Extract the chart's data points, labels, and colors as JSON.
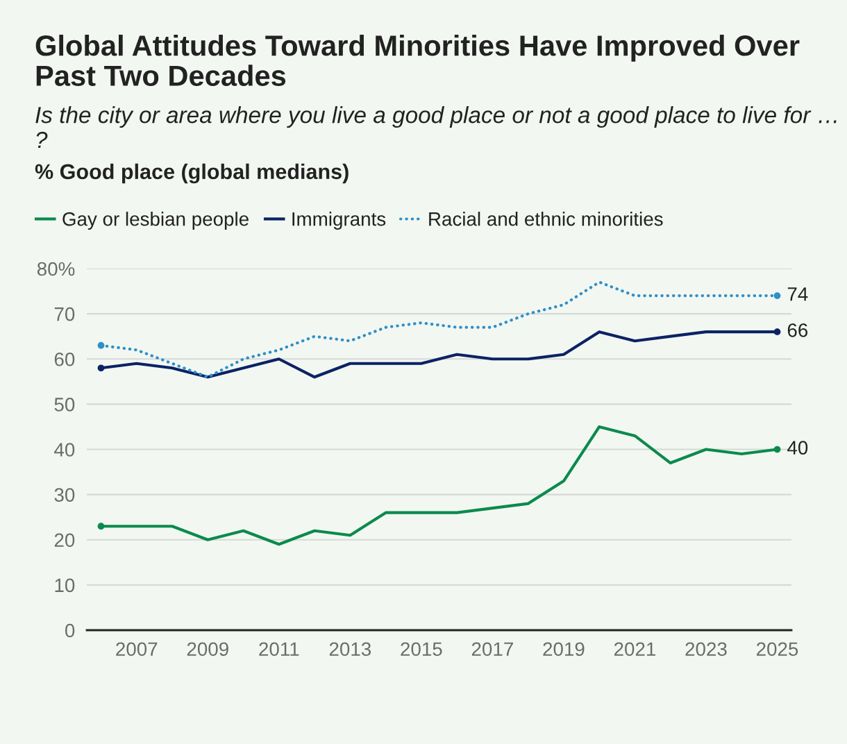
{
  "chart_data": {
    "type": "line",
    "title": "Global Attitudes Toward Minorities Have Improved Over Past Two Decades",
    "subtitle": "Is the city or area where you live a good place or not a good place to live for … ?",
    "ylabel": "% Good place (global medians)",
    "x": [
      2006,
      2007,
      2008,
      2009,
      2010,
      2011,
      2012,
      2013,
      2014,
      2015,
      2016,
      2017,
      2018,
      2019,
      2020,
      2021,
      2022,
      2023,
      2024,
      2025
    ],
    "xlim": [
      2005.6,
      2025.4
    ],
    "xticks": [
      2007,
      2009,
      2011,
      2013,
      2015,
      2017,
      2019,
      2021,
      2023,
      2025
    ],
    "ylim": [
      0,
      80
    ],
    "yticks": [
      0,
      10,
      20,
      30,
      40,
      50,
      60,
      70,
      {
        "value": 80,
        "label": "80%"
      }
    ],
    "grid": "y",
    "legend": "top left",
    "series": [
      {
        "name": "Gay or lesbian people",
        "color": "#0b8a4e",
        "line_style": "solid",
        "values": [
          23,
          23,
          23,
          20,
          22,
          19,
          22,
          21,
          26,
          26,
          26,
          27,
          28,
          33,
          45,
          43,
          37,
          40,
          39,
          40
        ],
        "value_labels": [
          null,
          null,
          null,
          null,
          null,
          null,
          null,
          null,
          null,
          null,
          null,
          null,
          null,
          null,
          null,
          null,
          null,
          null,
          null,
          "40"
        ]
      },
      {
        "name": "Immigrants",
        "color": "#0b2265",
        "line_style": "solid",
        "values": [
          58,
          59,
          58,
          56,
          58,
          60,
          56,
          59,
          59,
          59,
          61,
          60,
          60,
          61,
          66,
          64,
          65,
          66,
          66,
          66
        ],
        "value_labels": [
          null,
          null,
          null,
          null,
          null,
          null,
          null,
          null,
          null,
          null,
          null,
          null,
          null,
          null,
          null,
          null,
          null,
          null,
          null,
          "66"
        ]
      },
      {
        "name": "Racial and ethnic minorities",
        "color": "#2e8fc9",
        "line_style": "dotted",
        "values": [
          63,
          62,
          59,
          56,
          60,
          62,
          65,
          64,
          67,
          68,
          67,
          67,
          70,
          72,
          77,
          74,
          74,
          74,
          74,
          74
        ],
        "value_labels": [
          null,
          null,
          null,
          null,
          null,
          null,
          null,
          null,
          null,
          null,
          null,
          null,
          null,
          null,
          null,
          null,
          null,
          null,
          null,
          "74"
        ]
      }
    ]
  }
}
